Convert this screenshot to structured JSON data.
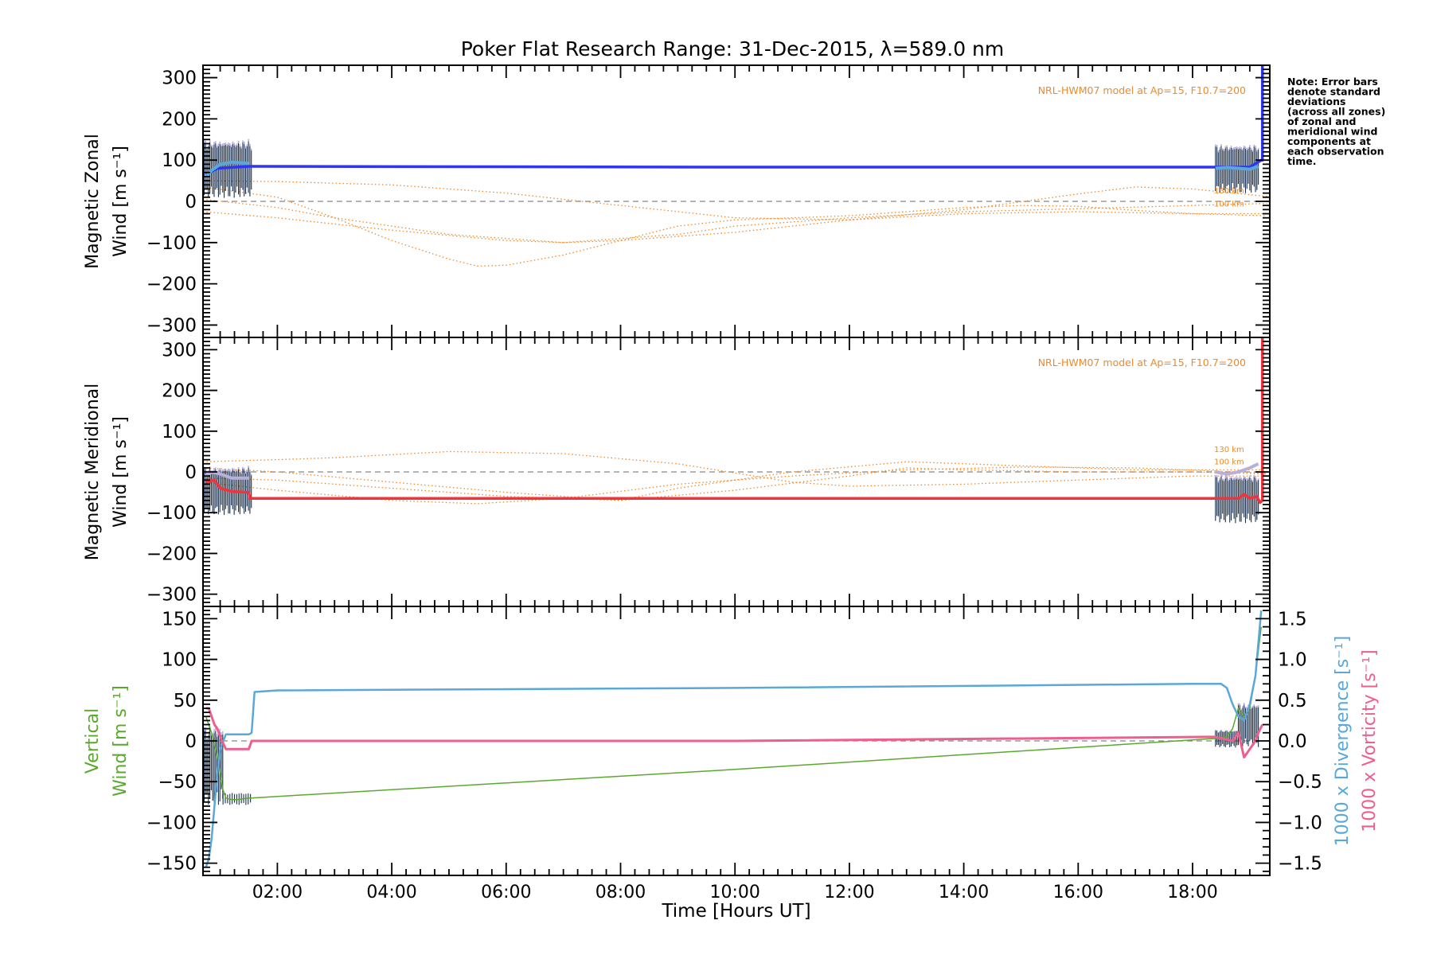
{
  "title": "Poker Flat Research Range: 31-Dec-2015, λ=589.0 nm",
  "note": [
    "Note: Error bars",
    "denote standard",
    "deviations",
    "(across all zones)",
    "of zonal and",
    "meridional wind",
    "components at",
    "each observation",
    "time."
  ],
  "colors": {
    "zonal": "#2f35f2",
    "meridional": "#f2333c",
    "vertical": "#5ba82e",
    "divergence": "#5aa8d8",
    "vorticity": "#ef5f8c",
    "model": "#ee8a2a",
    "errbar": "#1c2f4a",
    "lavender": "#b8b0dc",
    "zero": "#888888"
  },
  "chart_data": [
    {
      "id": "zonal",
      "type": "line",
      "ylabel": [
        "Magnetic Zonal",
        "Wind [m s⁻¹]"
      ],
      "ylim": [
        -330,
        330
      ],
      "yticks": [
        300,
        200,
        100,
        0,
        -100,
        -200,
        -300
      ],
      "yticklabels": [
        "300",
        "200",
        "100",
        "0",
        "−100",
        "−200",
        "−300"
      ],
      "xlim": [
        0.7,
        19.35
      ],
      "model_label": "NRL-HWM07 model at Ap=15, F10.7=200",
      "alt_labels": [
        {
          "text": "130 km",
          "y": 15
        },
        {
          "text": "100 km",
          "y": -16
        }
      ],
      "series": [
        {
          "name": "Zonal wind",
          "color_key": "zonal",
          "width": 3.5,
          "x": [
            0.75,
            0.95,
            1.5,
            1.52,
            10.0,
            18.4,
            19.0,
            19.2,
            19.22,
            19.22
          ],
          "y": [
            65,
            80,
            85,
            85,
            83,
            83,
            83,
            100,
            100,
            330
          ]
        },
        {
          "name": "Mean wind (early)",
          "color_key": "divergence",
          "width": 4,
          "x": [
            0.75,
            0.85,
            1.0,
            1.2,
            1.5
          ],
          "y": [
            60,
            75,
            90,
            95,
            92
          ]
        },
        {
          "name": "Mean wind (late)",
          "color_key": "divergence",
          "width": 4,
          "x": [
            18.4,
            18.6,
            18.8,
            19.0,
            19.15
          ],
          "y": [
            80,
            82,
            80,
            78,
            85
          ]
        }
      ],
      "model_series": [
        {
          "name": "model 1",
          "x": [
            0.7,
            2,
            3,
            4,
            5,
            5.5,
            6,
            7,
            8,
            9,
            10,
            11,
            12,
            13,
            14,
            15,
            16,
            17,
            18,
            19.3
          ],
          "y": [
            35,
            10,
            -40,
            -95,
            -140,
            -157,
            -155,
            -130,
            -95,
            -60,
            -45,
            -40,
            -35,
            -25,
            -15,
            -10,
            -12,
            -22,
            -30,
            -35
          ]
        },
        {
          "name": "model 2",
          "x": [
            0.7,
            2,
            4,
            6,
            7,
            8,
            10,
            12,
            14,
            16,
            17,
            18,
            19.3
          ],
          "y": [
            -25,
            -40,
            -70,
            -95,
            -100,
            -95,
            -75,
            -45,
            -20,
            18,
            35,
            30,
            12
          ]
        },
        {
          "name": "model 3",
          "x": [
            0.7,
            2,
            3,
            5,
            7,
            9,
            10,
            12,
            14,
            16,
            18,
            19.3
          ],
          "y": [
            5,
            -15,
            -40,
            -80,
            -100,
            -80,
            -60,
            -40,
            -25,
            -18,
            -10,
            -5
          ]
        },
        {
          "name": "model 4",
          "x": [
            0.7,
            2,
            4,
            6,
            8,
            10,
            12,
            14,
            16,
            18,
            19.3
          ],
          "y": [
            50,
            48,
            40,
            20,
            -10,
            -40,
            -45,
            -30,
            -25,
            -30,
            -30
          ]
        }
      ],
      "errbars": [
        {
          "x0": 0.72,
          "x1": 1.55,
          "step": 0.025,
          "center": 80,
          "half": 65
        },
        {
          "x0": 18.4,
          "x1": 19.15,
          "step": 0.025,
          "center": 80,
          "half": 55
        }
      ]
    },
    {
      "id": "meridional",
      "type": "line",
      "ylabel": [
        "Magnetic Meridional",
        "Wind [m s⁻¹]"
      ],
      "ylim": [
        -330,
        330
      ],
      "yticks": [
        300,
        200,
        100,
        0,
        -100,
        -200,
        -300
      ],
      "yticklabels": [
        "300",
        "200",
        "100",
        "0",
        "−100",
        "−200",
        "−300"
      ],
      "xlim": [
        0.7,
        19.35
      ],
      "model_label": "NRL-HWM07 model at Ap=15, F10.7=200",
      "alt_labels": [
        {
          "text": "130 km",
          "y": 45
        },
        {
          "text": "100 km",
          "y": 15
        }
      ],
      "series": [
        {
          "name": "Meridional wind",
          "color_key": "meridional",
          "width": 3.5,
          "x": [
            0.75,
            0.9,
            1.0,
            1.2,
            1.5,
            1.52,
            10.0,
            18.4,
            18.8,
            18.9,
            19.0,
            19.12,
            19.18,
            19.22,
            19.22
          ],
          "y": [
            -25,
            -20,
            -40,
            -48,
            -50,
            -65,
            -65,
            -65,
            -65,
            -55,
            -65,
            -60,
            -75,
            -70,
            330
          ]
        },
        {
          "name": "Mean wind (early)",
          "color_key": "lavender",
          "width": 4,
          "x": [
            0.75,
            0.85,
            1.0,
            1.2,
            1.5
          ],
          "y": [
            -10,
            0,
            -5,
            -15,
            -15
          ]
        },
        {
          "name": "Mean wind (late)",
          "color_key": "lavender",
          "width": 4,
          "x": [
            18.4,
            18.6,
            18.8,
            19.0,
            19.15
          ],
          "y": [
            0,
            -5,
            0,
            10,
            20
          ]
        }
      ],
      "model_series": [
        {
          "name": "model 1",
          "x": [
            0.7,
            2,
            4,
            5.5,
            7,
            9,
            11,
            13,
            15,
            17,
            19.3
          ],
          "y": [
            -25,
            -45,
            -70,
            -78,
            -65,
            -30,
            -10,
            5,
            12,
            10,
            -3
          ]
        },
        {
          "name": "model 2",
          "x": [
            0.7,
            2,
            3,
            5,
            7,
            9,
            11,
            12,
            14,
            16,
            18,
            19.3
          ],
          "y": [
            25,
            30,
            35,
            50,
            45,
            20,
            -25,
            -35,
            -30,
            -20,
            -10,
            -10
          ]
        },
        {
          "name": "model 3",
          "x": [
            0.7,
            2,
            4,
            6,
            8,
            9,
            11,
            13,
            15,
            17,
            19.3
          ],
          "y": [
            10,
            0,
            -25,
            -50,
            -70,
            -40,
            0,
            25,
            15,
            5,
            5
          ]
        },
        {
          "name": "model 4",
          "x": [
            0.7,
            2,
            4,
            6,
            8,
            10,
            12,
            13,
            14,
            16,
            18,
            19.3
          ],
          "y": [
            -15,
            -20,
            -40,
            -60,
            -70,
            -45,
            -10,
            10,
            5,
            0,
            0,
            -5
          ]
        }
      ],
      "errbars": [
        {
          "x0": 0.72,
          "x1": 1.55,
          "step": 0.025,
          "center": -45,
          "half": 55
        },
        {
          "x0": 18.4,
          "x1": 19.15,
          "step": 0.025,
          "center": -65,
          "half": 55
        }
      ]
    },
    {
      "id": "vertical",
      "type": "line",
      "ylabel": [
        "Vertical",
        "Wind [m s⁻¹]"
      ],
      "ylim": [
        -165,
        165
      ],
      "yticks": [
        150,
        100,
        50,
        0,
        -50,
        -100,
        -150
      ],
      "yticklabels": [
        "150",
        "100",
        "50",
        "0",
        "−50",
        "−100",
        "−150"
      ],
      "xlim": [
        0.7,
        19.35
      ],
      "xticks": [
        2,
        4,
        6,
        8,
        10,
        12,
        14,
        16,
        18
      ],
      "xticklabels": [
        "02:00",
        "04:00",
        "06:00",
        "08:00",
        "10:00",
        "12:00",
        "14:00",
        "16:00",
        "18:00"
      ],
      "xlabel": "Time [Hours UT]",
      "y2label": [
        "1000 x Divergence [s⁻¹]",
        "1000 x Vorticity [s⁻¹]"
      ],
      "y2lim": [
        -1.65,
        1.65
      ],
      "y2ticks": [
        1.5,
        1.0,
        0.5,
        0.0,
        -0.5,
        -1.0,
        -1.5
      ],
      "y2ticklabels": [
        "1.5",
        "1.0",
        "0.5",
        "0.0",
        "−0.5",
        "−1.0",
        "−1.5"
      ],
      "series": [
        {
          "name": "Vertical wind",
          "color_key": "vertical",
          "width": 1.5,
          "axis": "y",
          "x": [
            0.75,
            0.8,
            0.85,
            0.9,
            0.95,
            1.0,
            1.05,
            1.1,
            1.2,
            1.3,
            1.4,
            1.5,
            1.55,
            10.0,
            18.4,
            18.6,
            18.7,
            18.8,
            18.9,
            19.0,
            19.1,
            19.2
          ],
          "y": [
            30,
            20,
            10,
            -5,
            -20,
            -40,
            -60,
            -70,
            -72,
            -72,
            -71,
            -70,
            -70,
            -35,
            3,
            5,
            15,
            40,
            30,
            40,
            80,
            140
          ]
        },
        {
          "name": "Divergence",
          "color_key": "divergence",
          "width": 2.5,
          "axis": "y2",
          "x": [
            0.75,
            0.8,
            0.85,
            0.9,
            0.95,
            1.0,
            1.1,
            1.5,
            1.55,
            1.6,
            2.0,
            10.0,
            18.0,
            18.5,
            18.6,
            18.7,
            18.8,
            18.9,
            19.0,
            19.1,
            19.2
          ],
          "y": [
            -1.55,
            -1.45,
            -1.2,
            -0.8,
            -0.4,
            -0.1,
            0.08,
            0.08,
            0.1,
            0.6,
            0.62,
            0.65,
            0.7,
            0.7,
            0.65,
            0.45,
            0.3,
            0.25,
            0.45,
            0.8,
            1.6
          ]
        },
        {
          "name": "Vorticity",
          "color_key": "vorticity",
          "width": 3,
          "axis": "y2",
          "x": [
            0.75,
            0.8,
            0.85,
            0.9,
            0.95,
            1.0,
            1.1,
            1.5,
            1.55,
            10.0,
            18.4,
            18.7,
            18.8,
            18.9,
            19.0,
            19.1,
            19.15,
            19.22
          ],
          "y": [
            0.4,
            0.4,
            0.3,
            0.2,
            0.15,
            0.05,
            -0.1,
            -0.1,
            0.0,
            0.0,
            0.05,
            0.0,
            0.1,
            -0.2,
            -0.1,
            0.0,
            0.1,
            0.2
          ]
        }
      ],
      "errbars": [
        {
          "x0": 0.72,
          "x1": 1.05,
          "step": 0.025,
          "center": -30,
          "half": 45
        },
        {
          "x0": 1.05,
          "x1": 1.55,
          "step": 0.04,
          "center": -71,
          "half": 7
        },
        {
          "x0": 18.4,
          "x1": 18.8,
          "step": 0.025,
          "center": 3,
          "half": 10
        },
        {
          "x0": 18.8,
          "x1": 19.15,
          "step": 0.025,
          "center": 20,
          "half": 25
        }
      ]
    }
  ]
}
